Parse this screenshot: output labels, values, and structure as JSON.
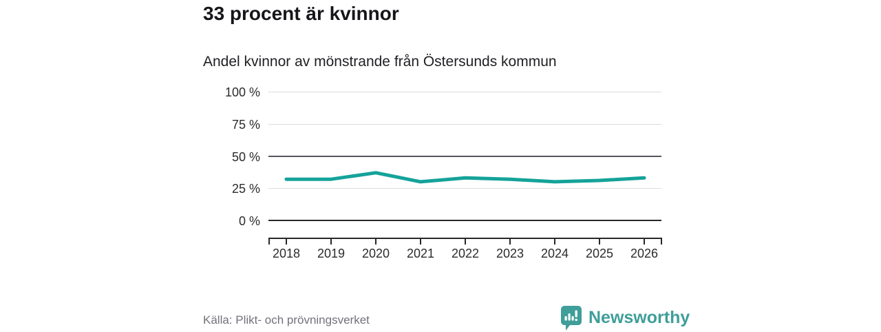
{
  "title": "33 procent är kvinnor",
  "subtitle": "Andel kvinnor av mönstrande från Östersunds kommun",
  "source": "Källa: Plikt- och prövningsverket",
  "branding": {
    "name": "Newsworthy"
  },
  "colors": {
    "line": "#14a39a",
    "grid_light": "#dcdcde",
    "grid_reference": "#55555e",
    "grid_zero": "#27272a",
    "axis_text": "#2b2b2b",
    "source_text": "#71717a",
    "brand": "#3f9e99"
  },
  "chart_data": {
    "type": "line",
    "title": "33 procent är kvinnor",
    "subtitle": "Andel kvinnor av mönstrande från Östersunds kommun",
    "x": [
      "2018",
      "2019",
      "2020",
      "2021",
      "2022",
      "2023",
      "2024",
      "2025",
      "2026"
    ],
    "series": [
      {
        "name": "Andel kvinnor av mönstrande",
        "values": [
          32,
          32,
          37,
          30,
          33,
          32,
          30,
          31,
          33
        ]
      }
    ],
    "unit": "%",
    "xlabel": "",
    "ylabel": "",
    "ylim": [
      0,
      100
    ],
    "yticks": [
      0,
      25,
      50,
      75,
      100
    ],
    "ytick_labels": [
      "0 %",
      "25 %",
      "50 %",
      "75 %",
      "100 %"
    ],
    "reference_line": 50,
    "grid": "horizontal",
    "legend": "none"
  }
}
